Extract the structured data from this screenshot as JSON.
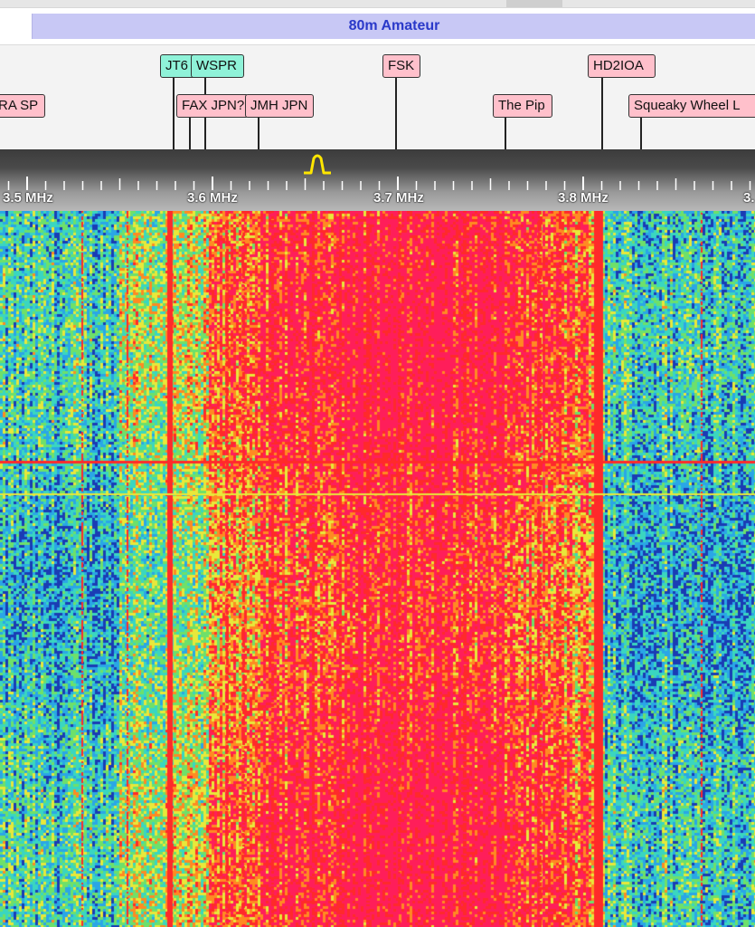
{
  "band": {
    "name": "80m Amateur"
  },
  "stations_row1": [
    {
      "label": "JT6",
      "color": "teal"
    },
    {
      "label": "WSPR",
      "color": "teal"
    },
    {
      "label": "FSK",
      "color": "pink"
    },
    {
      "label": "HD2IOA",
      "color": "pink"
    }
  ],
  "stations_row2": [
    {
      "label": "RA SP",
      "color": "pink"
    },
    {
      "label": "FAX JPN?",
      "color": "pink"
    },
    {
      "label": "JMH JPN",
      "color": "pink"
    },
    {
      "label": "The Pip",
      "color": "pink"
    },
    {
      "label": "Squeaky Wheel L",
      "color": "pink"
    }
  ],
  "scale": {
    "labels": [
      "3.5 MHz",
      "3.6 MHz",
      "3.7 MHz",
      "3.8 MHz",
      "3."
    ],
    "passband_icon": "passband-marker-icon",
    "tick_color": "#ffffff",
    "passband_color": "#ffe600"
  },
  "waterfall": {
    "palette": [
      "#1a3cb4",
      "#2aa6e6",
      "#3ad6c0",
      "#6ee06a",
      "#e8e83a",
      "#ff8a22",
      "#ff2a2a",
      "#ff1e5a"
    ],
    "strong_color": "#ff2a2a"
  }
}
